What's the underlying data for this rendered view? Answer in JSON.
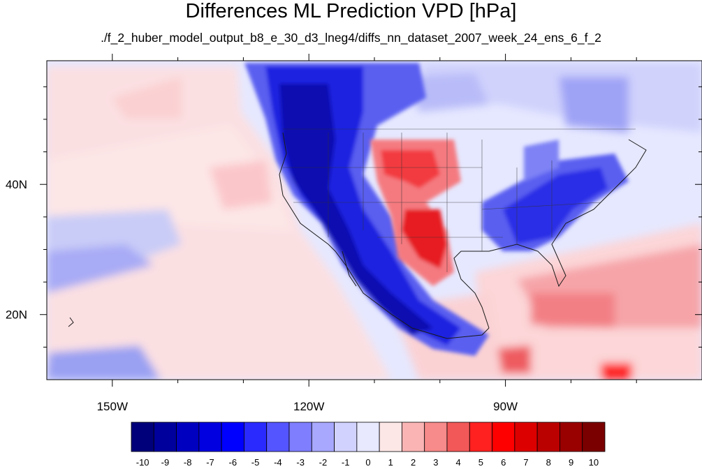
{
  "title": "Differences ML Prediction VPD [hPa]",
  "subtitle": "./f_2_huber_model_output_b8_e_30_d3_lneg4/diffs_nn_dataset_2007_week_24_ens_6_f_2",
  "map": {
    "projection": "cylindrical equidistant",
    "lon_range": [
      -160,
      -60
    ],
    "lat_range": [
      10,
      59
    ],
    "x_ticks": [
      {
        "lon": -150,
        "label": "150W"
      },
      {
        "lon": -120,
        "label": "120W"
      },
      {
        "lon": -90,
        "label": "90W"
      }
    ],
    "y_ticks": [
      {
        "lat": 40,
        "label": "40N"
      },
      {
        "lat": 20,
        "label": "20N"
      }
    ],
    "background_color": "#e6e8ff"
  },
  "colorbar": {
    "labels": [
      "-10",
      "-9",
      "-8",
      "-7",
      "-6",
      "-5",
      "-4",
      "-3",
      "-2",
      "-1",
      "0",
      "1",
      "2",
      "3",
      "4",
      "5",
      "6",
      "7",
      "8",
      "9",
      "10"
    ],
    "colors": [
      "#00007a",
      "#00009c",
      "#0000c0",
      "#0000e0",
      "#0000ff",
      "#2a2aff",
      "#5555ff",
      "#7e7eff",
      "#a8a8ff",
      "#d2d2ff",
      "#e8e8ff",
      "#fde6e6",
      "#fbb4b4",
      "#f78a8a",
      "#f25858",
      "#ff2020",
      "#ff0000",
      "#dd0000",
      "#bb0000",
      "#990000",
      "#7a0000"
    ]
  }
}
